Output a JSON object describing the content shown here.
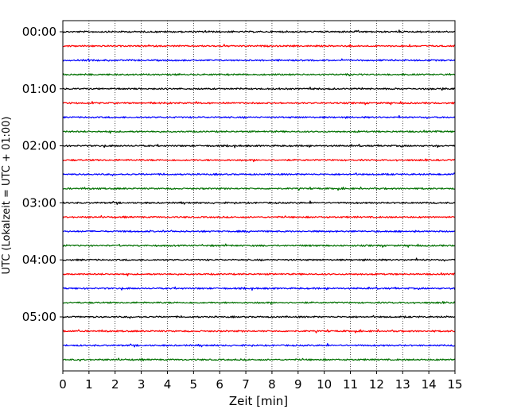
{
  "chart_data": {
    "type": "line",
    "title": "",
    "xlabel": "Zeit  [min]",
    "ylabel": "UTC (Lokalzeit = UTC + 01:00)",
    "xlim": [
      0,
      15
    ],
    "x_ticks": [
      "0",
      "1",
      "2",
      "3",
      "4",
      "5",
      "6",
      "7",
      "8",
      "9",
      "10",
      "11",
      "12",
      "13",
      "14",
      "15"
    ],
    "y_tick_labels": [
      "00:00",
      "01:00",
      "02:00",
      "03:00",
      "04:00",
      "05:00"
    ],
    "traces_per_hour": 4,
    "trace_count": 24,
    "trace_minutes": 15,
    "trace_colors": [
      "#000000",
      "#ff0000",
      "#0000ff",
      "#007000"
    ],
    "grid": "vertical dotted lines at each minute",
    "legend": "none"
  }
}
